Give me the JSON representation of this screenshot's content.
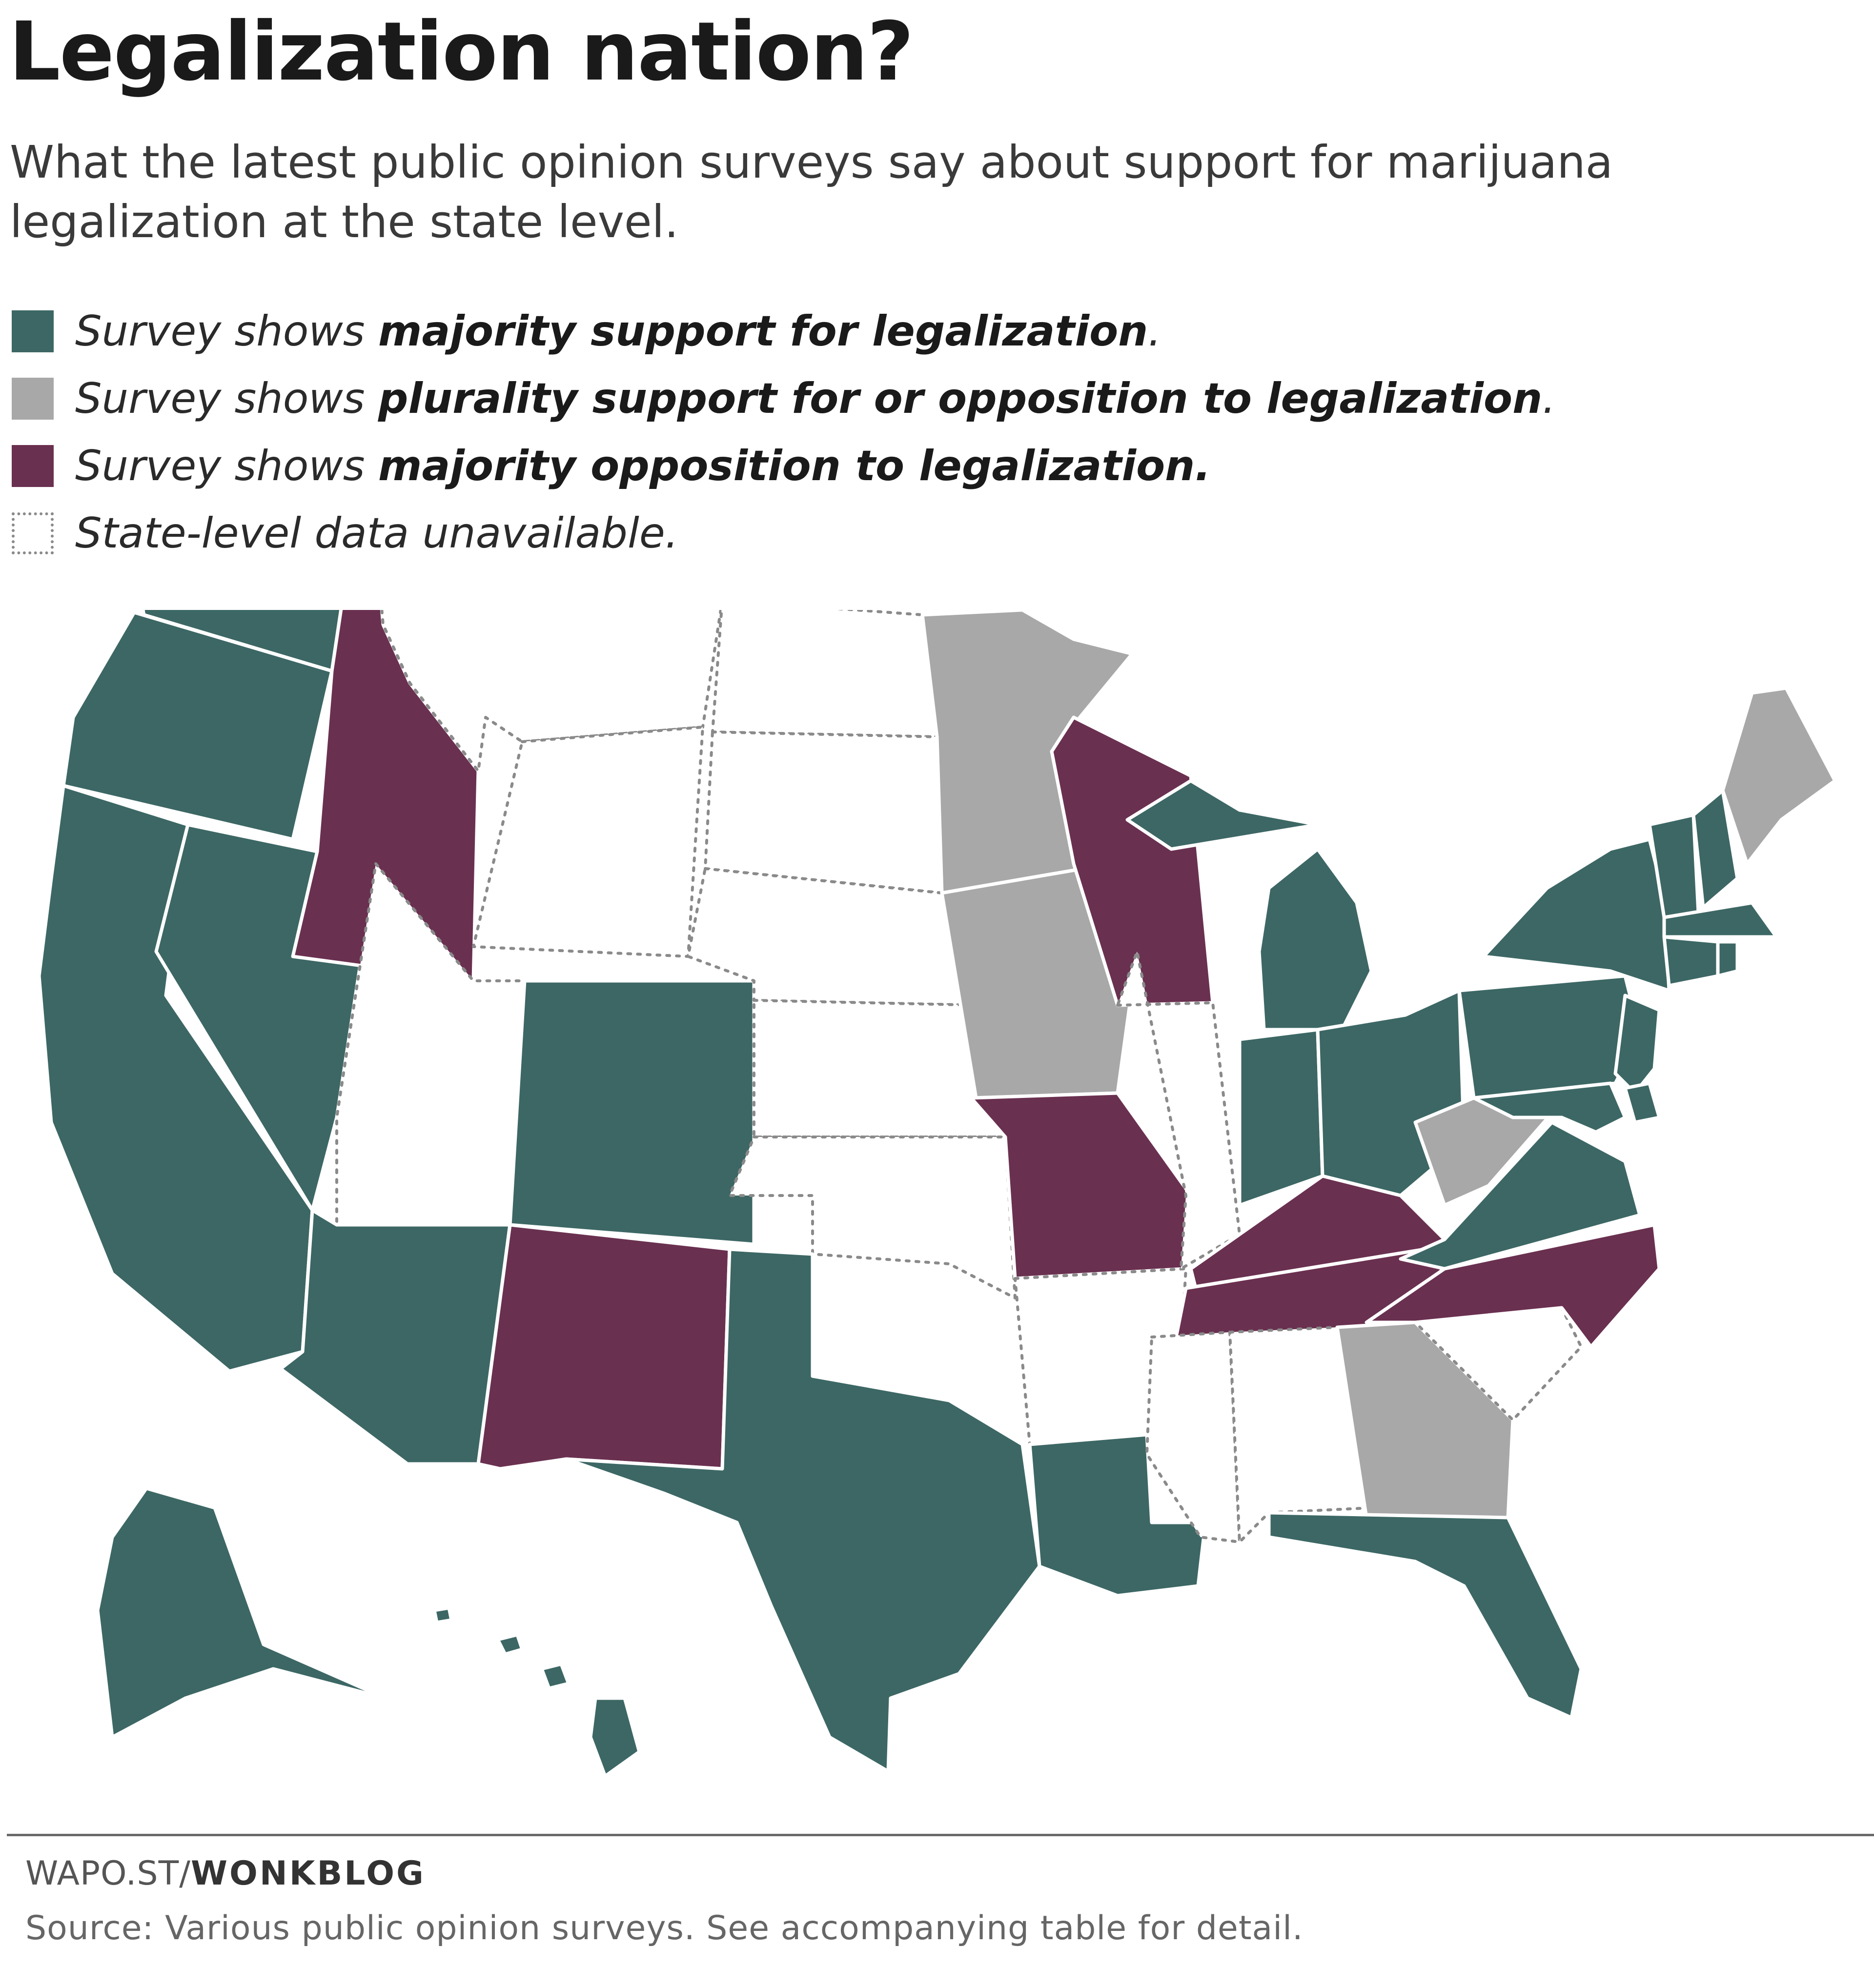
{
  "header": {
    "title": "Legalization nation?",
    "subtitle": "What the latest public opinion surveys say about support for marijuana legalization at the state level."
  },
  "legend": {
    "items": [
      {
        "prefix": "Survey shows ",
        "bold": "majority support for legalization",
        "suffix": ".",
        "color": "#3c6764"
      },
      {
        "prefix": "Survey shows ",
        "bold": "plurality support for or opposition to legalization",
        "suffix": ".",
        "color": "#a8a8a8"
      },
      {
        "prefix": "Survey shows ",
        "bold": "majority opposition to legalization.",
        "suffix": "",
        "color": "#6a3050"
      },
      {
        "prefix": "State-level data unavailable.",
        "bold": "",
        "suffix": "",
        "color": "#ffffff"
      }
    ]
  },
  "map": {
    "category_colors": {
      "majority-support": "#3c6764",
      "plurality": "#a8a8a8",
      "majority-opposition": "#6a3050",
      "unavailable": "#ffffff"
    }
  },
  "footer": {
    "credit_plain": "WAPO.ST/",
    "credit_bold": "WONKBLOG",
    "source": "Source: Various public opinion surveys. See accompanying table for detail."
  }
}
